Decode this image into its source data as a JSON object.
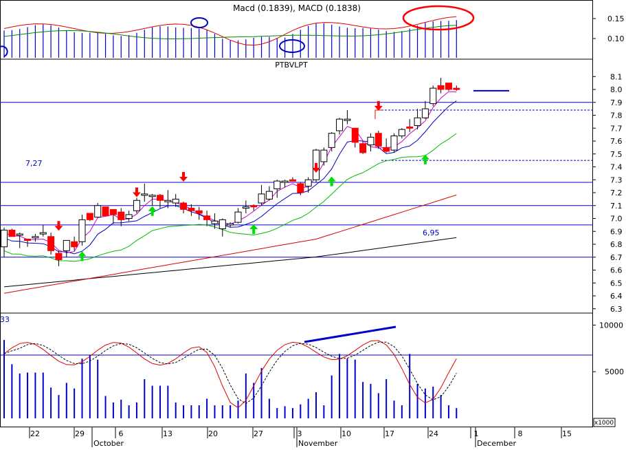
{
  "chart_data": {
    "type": "candlestick",
    "ticker": "PTBVLPT",
    "top_panel_label": "Macd (0.1839), MACD (0.1838)",
    "top_axis_ticks": [
      "0.15",
      "0.10"
    ],
    "price_axis_ticks": [
      "8.1",
      "8.0",
      "7.9",
      "7.8",
      "7.7",
      "7.6",
      "7.5",
      "7.4",
      "7.3",
      "7.2",
      "7.1",
      "7.0",
      "6.9",
      "6.8",
      "6.7",
      "6.6",
      "6.5",
      "6.4",
      "6.3"
    ],
    "bottom_axis_ticks": [
      "10000",
      "5000"
    ],
    "scale_box_label": "x1000",
    "left_edge_label": "33",
    "x_day_labels": [
      "22",
      "29",
      "6",
      "13",
      "20",
      "27",
      "3",
      "10",
      "17",
      "24",
      "1",
      "8",
      "15"
    ],
    "x_month_labels": [
      "October",
      "November",
      "December"
    ],
    "horizontal_levels": [
      7.9,
      7.28,
      7.1,
      6.95,
      6.7
    ],
    "level_labels": [
      {
        "text": "7,27",
        "price": 7.27
      },
      {
        "text": "6,95",
        "price": 6.95
      }
    ],
    "dashed_levels": [
      7.84,
      7.45
    ],
    "candles": [
      [
        6.78,
        6.93,
        6.7,
        6.91
      ],
      [
        6.91,
        6.92,
        6.86,
        6.86
      ],
      [
        6.88,
        6.89,
        6.77,
        6.88
      ],
      [
        6.84,
        6.84,
        6.78,
        6.83
      ],
      [
        6.86,
        6.88,
        6.82,
        6.86
      ],
      [
        6.89,
        6.95,
        6.86,
        6.89
      ],
      [
        6.86,
        6.89,
        6.72,
        6.75
      ],
      [
        6.73,
        6.75,
        6.63,
        6.68
      ],
      [
        6.75,
        6.83,
        6.7,
        6.83
      ],
      [
        6.82,
        6.86,
        6.75,
        6.78
      ],
      [
        6.82,
        7.03,
        6.79,
        6.99
      ],
      [
        7.04,
        7.04,
        6.98,
        6.99
      ],
      [
        7.01,
        7.12,
        7.01,
        7.1
      ],
      [
        7.09,
        7.09,
        7.02,
        7.02
      ],
      [
        7.07,
        7.07,
        6.96,
        7.03
      ],
      [
        7.05,
        7.08,
        6.94,
        6.99
      ],
      [
        7.0,
        7.06,
        6.98,
        7.03
      ],
      [
        7.06,
        7.16,
        7.04,
        7.14
      ],
      [
        7.19,
        7.27,
        7.13,
        7.19
      ],
      [
        7.18,
        7.19,
        7.1,
        7.18
      ],
      [
        7.18,
        7.19,
        7.08,
        7.14
      ],
      [
        7.14,
        7.22,
        7.08,
        7.14
      ],
      [
        7.12,
        7.19,
        7.09,
        7.15
      ],
      [
        7.12,
        7.13,
        7.04,
        7.07
      ],
      [
        7.08,
        7.11,
        7.02,
        7.06
      ],
      [
        7.06,
        7.09,
        6.99,
        7.04
      ],
      [
        7.02,
        7.06,
        6.94,
        6.99
      ],
      [
        6.96,
        7.04,
        6.92,
        6.98
      ],
      [
        6.92,
        7.0,
        6.86,
        6.99
      ],
      [
        6.96,
        6.97,
        6.93,
        6.96
      ],
      [
        6.97,
        7.08,
        6.96,
        7.05
      ],
      [
        7.08,
        7.14,
        7.04,
        7.09
      ],
      [
        7.1,
        7.11,
        7.06,
        7.09
      ],
      [
        7.12,
        7.26,
        7.1,
        7.19
      ],
      [
        7.15,
        7.25,
        7.14,
        7.21
      ],
      [
        7.23,
        7.3,
        7.16,
        7.29
      ],
      [
        7.28,
        7.3,
        7.24,
        7.29
      ],
      [
        7.3,
        7.32,
        7.29,
        7.29
      ],
      [
        7.27,
        7.28,
        7.18,
        7.2
      ],
      [
        7.25,
        7.32,
        7.2,
        7.3
      ],
      [
        7.3,
        7.54,
        7.28,
        7.53
      ],
      [
        7.44,
        7.55,
        7.41,
        7.53
      ],
      [
        7.55,
        7.67,
        7.52,
        7.66
      ],
      [
        7.68,
        7.78,
        7.65,
        7.77
      ],
      [
        7.77,
        7.84,
        7.73,
        7.77
      ],
      [
        7.7,
        7.7,
        7.55,
        7.59
      ],
      [
        7.58,
        7.6,
        7.5,
        7.51
      ],
      [
        7.57,
        7.66,
        7.52,
        7.63
      ],
      [
        7.66,
        7.68,
        7.54,
        7.56
      ],
      [
        7.55,
        7.62,
        7.51,
        7.52
      ],
      [
        7.53,
        7.66,
        7.51,
        7.64
      ],
      [
        7.64,
        7.7,
        7.62,
        7.69
      ],
      [
        7.71,
        7.77,
        7.67,
        7.7
      ],
      [
        7.72,
        7.85,
        7.69,
        7.78
      ],
      [
        7.78,
        7.91,
        7.77,
        7.85
      ],
      [
        7.89,
        8.03,
        7.87,
        8.01
      ],
      [
        8.03,
        8.09,
        7.97,
        8.0
      ],
      [
        8.05,
        8.05,
        7.99,
        8.0
      ],
      [
        8.01,
        8.03,
        7.99,
        8.0
      ]
    ],
    "volume_bars": [
      8400,
      5800,
      4800,
      4900,
      4900,
      4900,
      3300,
      2500,
      3800,
      3200,
      6400,
      6800,
      6300,
      2400,
      1700,
      2000,
      1400,
      1700,
      4200,
      3500,
      3500,
      3500,
      1700,
      1400,
      1400,
      1400,
      2100,
      1400,
      1400,
      1400,
      1900,
      4800,
      3800,
      5400,
      2100,
      1100,
      1300,
      1100,
      1500,
      2100,
      2800,
      1400,
      4600,
      6900,
      6400,
      6300,
      3900,
      3700,
      2700,
      4200,
      1900,
      1400,
      6900,
      3700,
      3200,
      3400,
      2500,
      1400,
      1100
    ]
  }
}
